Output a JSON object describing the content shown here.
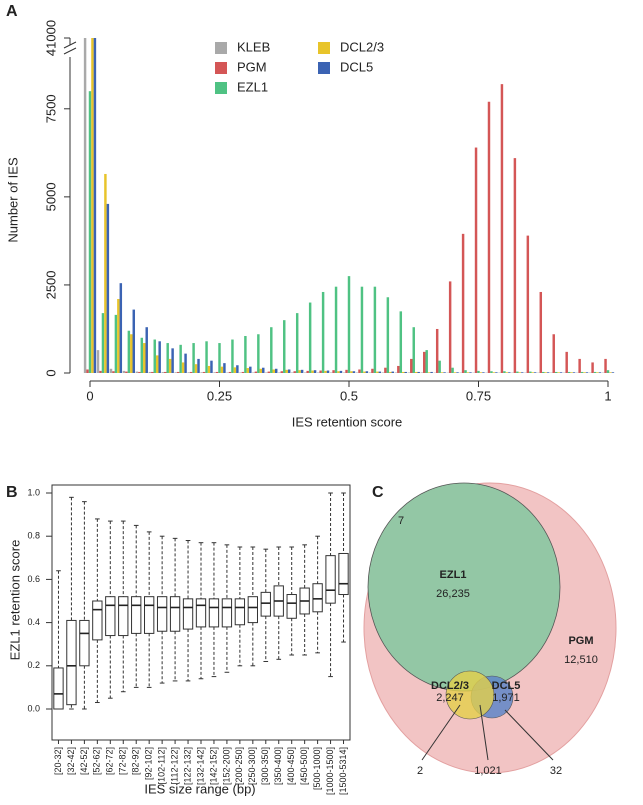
{
  "panels": [
    "A",
    "B",
    "C"
  ],
  "chart_data": [
    {
      "type": "bar",
      "x_label": "IES retention score",
      "y_label": "Number of IES",
      "x": [
        0,
        0.025,
        0.05,
        0.075,
        0.1,
        0.125,
        0.15,
        0.175,
        0.2,
        0.225,
        0.25,
        0.275,
        0.3,
        0.325,
        0.35,
        0.375,
        0.4,
        0.425,
        0.45,
        0.475,
        0.5,
        0.525,
        0.55,
        0.575,
        0.6,
        0.625,
        0.65,
        0.675,
        0.7,
        0.725,
        0.75,
        0.775,
        0.8,
        0.825,
        0.85,
        0.875,
        0.9,
        0.925,
        0.95,
        0.975,
        1
      ],
      "xlim": [
        0,
        1
      ],
      "xticks": [
        0,
        0.25,
        0.5,
        0.75,
        1
      ],
      "ylim": [
        0,
        41000
      ],
      "ybreak": [
        8800,
        40000
      ],
      "yticks": [
        0,
        2500,
        5000,
        7500,
        41000
      ],
      "series": [
        {
          "name": "KLEB",
          "color": "#a9a9a9",
          "values": [
            41000,
            650,
            120,
            60,
            40,
            30,
            25,
            20,
            20,
            20,
            20,
            15,
            15,
            15,
            15,
            15,
            15,
            15,
            15,
            15,
            15,
            15,
            15,
            15,
            15,
            15,
            15,
            10,
            10,
            10,
            10,
            10,
            10,
            10,
            10,
            10,
            10,
            10,
            10,
            10,
            10
          ]
        },
        {
          "name": "PGM",
          "color": "#d45656",
          "values": [
            100,
            60,
            50,
            40,
            30,
            30,
            30,
            30,
            30,
            30,
            30,
            30,
            30,
            40,
            40,
            50,
            50,
            60,
            70,
            80,
            90,
            100,
            120,
            150,
            200,
            400,
            600,
            1250,
            2600,
            3950,
            6400,
            7700,
            8200,
            6100,
            3900,
            2300,
            1100,
            600,
            400,
            300,
            400
          ]
        },
        {
          "name": "EZL1",
          "color": "#4fc283",
          "values": [
            8000,
            1700,
            1650,
            1200,
            1000,
            950,
            850,
            800,
            850,
            900,
            850,
            950,
            1050,
            1100,
            1300,
            1500,
            1700,
            2000,
            2300,
            2450,
            2750,
            2450,
            2450,
            2150,
            1750,
            1300,
            650,
            350,
            150,
            80,
            60,
            50,
            50,
            40,
            40,
            30,
            30,
            30,
            30,
            30,
            80
          ]
        },
        {
          "name": "DCL2/3",
          "color": "#e8c42a",
          "values": [
            41000,
            5650,
            2100,
            1100,
            850,
            500,
            400,
            300,
            250,
            200,
            180,
            160,
            140,
            120,
            100,
            90,
            80,
            70,
            60,
            50,
            50,
            40,
            40,
            30,
            30,
            30,
            20,
            20,
            20,
            20,
            20,
            20,
            20,
            20,
            20,
            20,
            20,
            20,
            20,
            20,
            20
          ]
        },
        {
          "name": "DCL5",
          "color": "#3b63b3",
          "values": [
            41000,
            4800,
            2550,
            1800,
            1300,
            900,
            700,
            550,
            400,
            350,
            280,
            220,
            180,
            150,
            120,
            100,
            90,
            80,
            70,
            60,
            50,
            50,
            40,
            40,
            30,
            30,
            30,
            20,
            20,
            20,
            20,
            20,
            20,
            20,
            20,
            20,
            20,
            20,
            20,
            20,
            20
          ]
        }
      ]
    },
    {
      "type": "box",
      "x_label": "IES size range (bp)",
      "y_label": "EZL1 retention score",
      "categories": [
        "[20-32]",
        "[32-42]",
        "[42-52]",
        "[52-62]",
        "[62-72]",
        "[72-82]",
        "[82-92]",
        "[92-102]",
        "[102-112]",
        "[112-122]",
        "[122-132]",
        "[132-142]",
        "[142-152]",
        "[152-200]",
        "[200-250]",
        "[250-300]",
        "[300-350]",
        "[350-400]",
        "[400-450]",
        "[450-500]",
        "[500-1000]",
        "[1000-1500]",
        "[1500-5314]"
      ],
      "ylim": [
        0,
        1
      ],
      "yticks": [
        {
          "value": 0,
          "label": "0.0"
        },
        {
          "value": 0.2,
          "label": "0.2"
        },
        {
          "value": 0.4,
          "label": "0.4"
        },
        {
          "value": 0.6,
          "label": "0.6"
        },
        {
          "value": 0.8,
          "label": "0.8"
        },
        {
          "value": 1,
          "label": "1.0"
        }
      ],
      "whisker_low": [
        0,
        0,
        0,
        0.03,
        0.05,
        0.08,
        0.1,
        0.1,
        0.12,
        0.13,
        0.13,
        0.14,
        0.15,
        0.17,
        0.2,
        0.2,
        0.22,
        0.23,
        0.25,
        0.25,
        0.26,
        0.15,
        0.31
      ],
      "q1": [
        0,
        0.02,
        0.2,
        0.32,
        0.34,
        0.34,
        0.35,
        0.35,
        0.36,
        0.36,
        0.37,
        0.38,
        0.38,
        0.38,
        0.39,
        0.4,
        0.43,
        0.43,
        0.42,
        0.44,
        0.45,
        0.49,
        0.53
      ],
      "median": [
        0.07,
        0.2,
        0.35,
        0.46,
        0.48,
        0.48,
        0.48,
        0.48,
        0.47,
        0.47,
        0.47,
        0.48,
        0.47,
        0.47,
        0.47,
        0.47,
        0.49,
        0.5,
        0.49,
        0.5,
        0.51,
        0.55,
        0.58
      ],
      "q3": [
        0.19,
        0.41,
        0.41,
        0.5,
        0.52,
        0.52,
        0.52,
        0.52,
        0.52,
        0.52,
        0.51,
        0.51,
        0.51,
        0.51,
        0.51,
        0.52,
        0.54,
        0.57,
        0.53,
        0.56,
        0.58,
        0.71,
        0.72
      ],
      "whisker_high": [
        0.64,
        0.98,
        0.96,
        0.88,
        0.87,
        0.87,
        0.85,
        0.82,
        0.8,
        0.79,
        0.78,
        0.77,
        0.77,
        0.76,
        0.75,
        0.75,
        0.74,
        0.75,
        0.75,
        0.76,
        0.8,
        1,
        1
      ]
    }
  ],
  "venn": {
    "outlier": "7",
    "sets": [
      {
        "name": "EZL1",
        "count": "26,235"
      },
      {
        "name": "PGM",
        "count": "12,510"
      },
      {
        "name": "DCL2/3",
        "count": "2,247"
      },
      {
        "name": "DCL5",
        "count": "1,971"
      }
    ],
    "callouts": [
      "2",
      "1,021",
      "32"
    ]
  }
}
